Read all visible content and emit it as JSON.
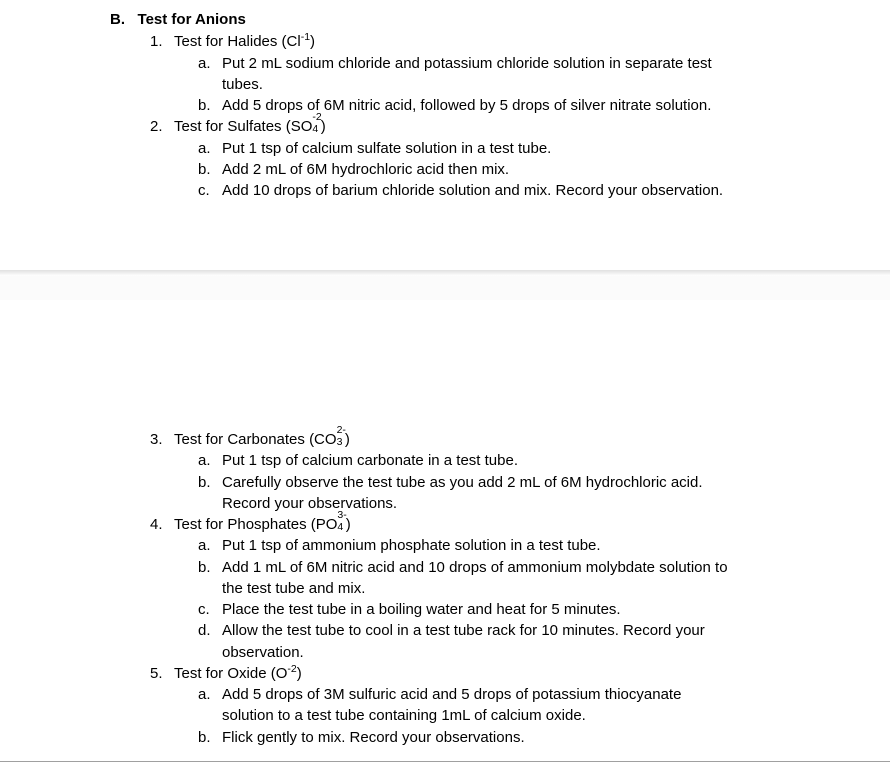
{
  "heading": {
    "letter": "B.",
    "title": "Test for Anions"
  },
  "items": [
    {
      "num": "1.",
      "title_pre": "Test for Halides (Cl",
      "title_sup": "-1",
      "title_post": ")",
      "steps": [
        {
          "m": "a.",
          "t": "Put 2 mL sodium chloride and potassium chloride solution in separate test",
          "cont": "tubes."
        },
        {
          "m": "b.",
          "t": "Add 5 drops of 6M nitric acid, followed by 5 drops of silver nitrate solution."
        }
      ]
    },
    {
      "num": "2.",
      "title_pre": "Test for Sulfates (SO",
      "title_sub": "4",
      "title_sup": "-2",
      "title_post": ")",
      "steps": [
        {
          "m": "a.",
          "t": "Put 1 tsp of calcium sulfate solution in a test tube."
        },
        {
          "m": "b.",
          "t": "Add 2 mL of 6M hydrochloric acid then mix."
        },
        {
          "m": "c.",
          "t": "Add 10 drops of barium chloride solution and mix. Record your observation."
        }
      ]
    },
    {
      "num": "3.",
      "title_pre": "Test for Carbonates (CO",
      "title_sub": "3",
      "title_sup": "2-",
      "title_post": ")",
      "steps": [
        {
          "m": "a.",
          "t": "Put 1 tsp of calcium carbonate in a test tube."
        },
        {
          "m": "b.",
          "t": "Carefully observe the test tube as you add 2 mL of 6M hydrochloric acid.",
          "cont": "Record your observations."
        }
      ]
    },
    {
      "num": "4.",
      "title_pre": "Test for Phosphates (PO",
      "title_sub": "4",
      "title_sup": "3-",
      "title_post": ")",
      "steps": [
        {
          "m": "a.",
          "t": "Put 1 tsp of ammonium phosphate solution in a test tube."
        },
        {
          "m": "b.",
          "t": "Add 1 mL of 6M nitric acid and 10 drops of ammonium molybdate solution to",
          "cont": "the test tube and mix."
        },
        {
          "m": "c.",
          "t": "Place the test tube in a boiling water and heat for 5 minutes."
        },
        {
          "m": "d.",
          "t": "Allow the test tube to cool in a test tube rack for 10 minutes. Record your",
          "cont": "observation."
        }
      ]
    },
    {
      "num": "5.",
      "title_pre": "Test for Oxide (O",
      "title_sup": "-2",
      "title_post": ")",
      "steps": [
        {
          "m": "a.",
          "t": "Add 5 drops of 3M sulfuric acid and 5 drops of potassium thiocyanate",
          "cont": "solution to a test tube containing 1mL of calcium oxide."
        },
        {
          "m": "b.",
          "t": "Flick gently to mix. Record your observations."
        }
      ]
    }
  ]
}
